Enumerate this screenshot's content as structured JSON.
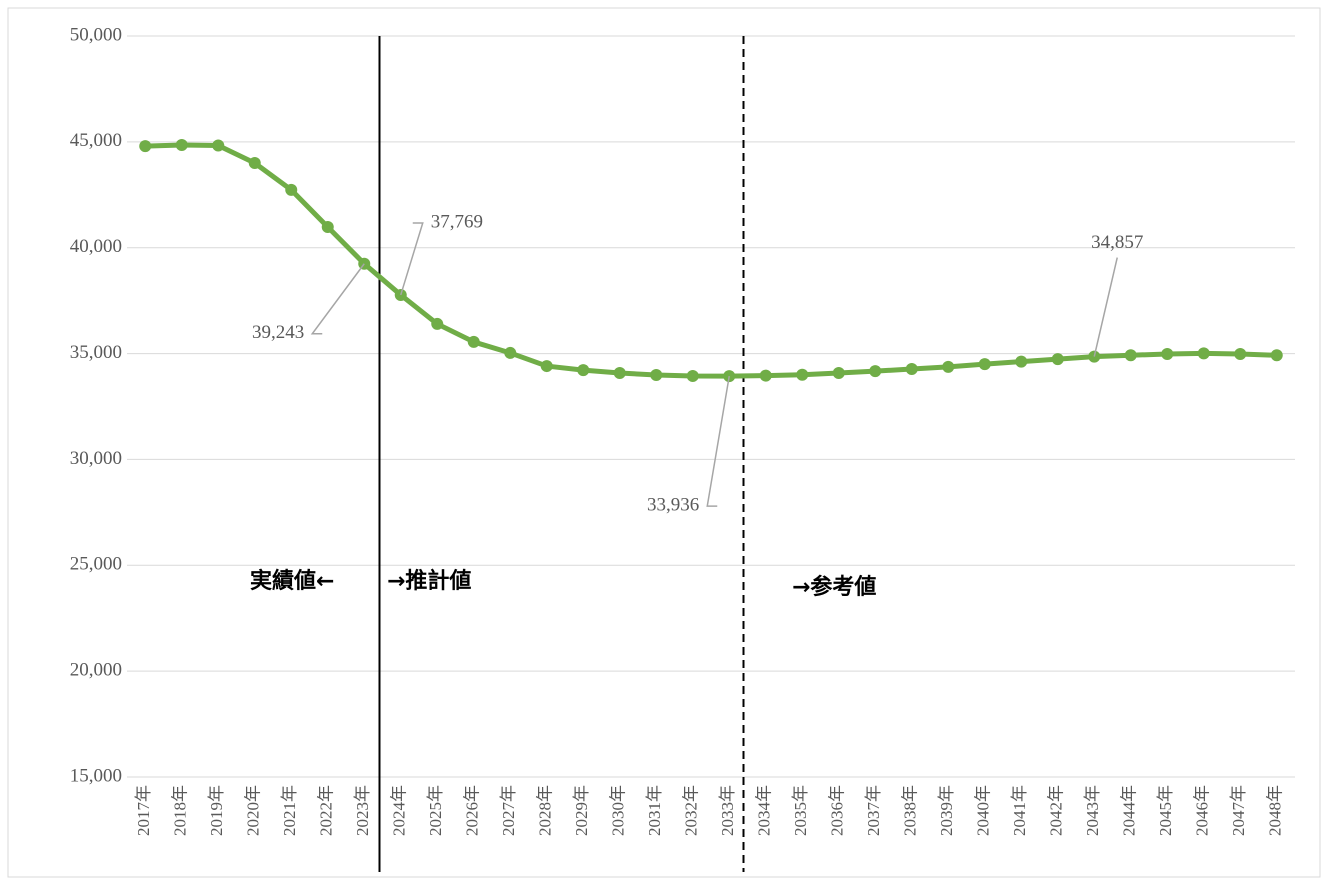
{
  "chart_data": {
    "type": "line",
    "categories": [
      "2017年",
      "2018年",
      "2019年",
      "2020年",
      "2021年",
      "2022年",
      "2023年",
      "2024年",
      "2025年",
      "2026年",
      "2027年",
      "2028年",
      "2029年",
      "2030年",
      "2031年",
      "2032年",
      "2033年",
      "2034年",
      "2035年",
      "2036年",
      "2037年",
      "2038年",
      "2039年",
      "2040年",
      "2041年",
      "2042年",
      "2043年",
      "2044年",
      "2045年",
      "2046年",
      "2047年",
      "2048年"
    ],
    "series": [
      {
        "color": "#70ad47",
        "values": [
          44800,
          44850,
          44830,
          44000,
          42730,
          40980,
          39243,
          37769,
          36400,
          35550,
          35030,
          34410,
          34220,
          34080,
          33990,
          33940,
          33936,
          33960,
          34000,
          34080,
          34170,
          34270,
          34370,
          34500,
          34620,
          34740,
          34857,
          34920,
          34980,
          35010,
          34980,
          34920
        ],
        "value_labels": [
          null,
          null,
          null,
          null,
          null,
          null,
          "39,243",
          "37,769",
          null,
          null,
          null,
          null,
          null,
          null,
          null,
          null,
          "33,936",
          null,
          null,
          null,
          null,
          null,
          null,
          null,
          null,
          null,
          "34,857",
          null,
          null,
          null,
          null,
          null
        ]
      }
    ],
    "ylim": [
      15000,
      50000
    ],
    "yticks": [
      {
        "value": 15000,
        "label": "15,000"
      },
      {
        "value": 20000,
        "label": "20,000"
      },
      {
        "value": 25000,
        "label": "25,000"
      },
      {
        "value": 30000,
        "label": "30,000"
      },
      {
        "value": 35000,
        "label": "35,000"
      },
      {
        "value": 40000,
        "label": "40,000"
      },
      {
        "value": 45000,
        "label": "45,000"
      },
      {
        "value": 50000,
        "label": "50,000"
      }
    ],
    "grid": true,
    "annotations": [
      "実績値←",
      "→推計値",
      "→参考値"
    ]
  }
}
